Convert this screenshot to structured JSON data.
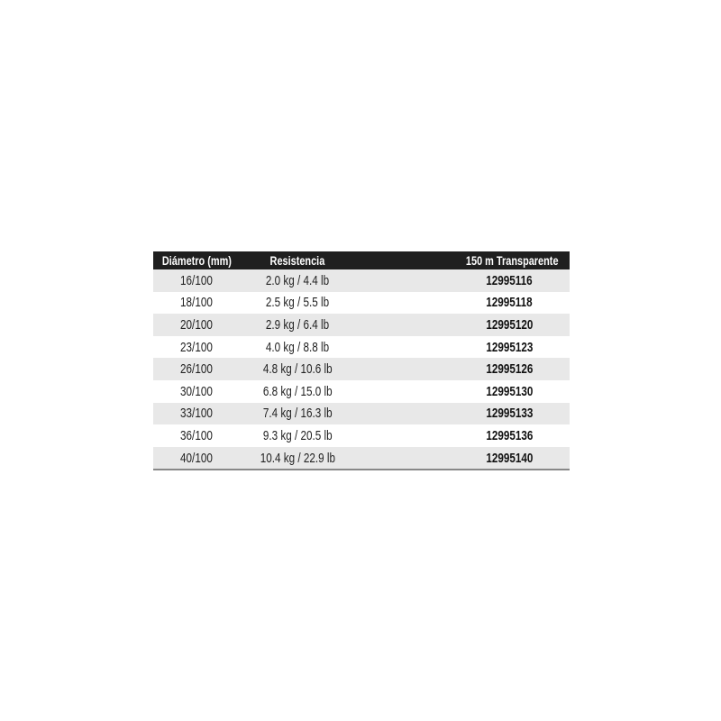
{
  "table": {
    "headers": [
      "Diámetro (mm)",
      "Resistencia",
      "150 m Transparente"
    ],
    "rows": [
      [
        "16/100",
        "2.0 kg / 4.4 lb",
        "12995116"
      ],
      [
        "18/100",
        "2.5 kg / 5.5 lb",
        "12995118"
      ],
      [
        "20/100",
        "2.9 kg / 6.4 lb",
        "12995120"
      ],
      [
        "23/100",
        "4.0 kg / 8.8 lb",
        "12995123"
      ],
      [
        "26/100",
        "4.8 kg / 10.6 lb",
        "12995126"
      ],
      [
        "30/100",
        "6.8 kg / 15.0 lb",
        "12995130"
      ],
      [
        "33/100",
        "7.4 kg / 16.3 lb",
        "12995133"
      ],
      [
        "36/100",
        "9.3 kg / 20.5 lb",
        "12995136"
      ],
      [
        "40/100",
        "10.4 kg / 22.9 lb",
        "12995140"
      ]
    ],
    "colors": {
      "header_bg": "#1f1f1f",
      "row_shade": "#e8e8e8"
    }
  }
}
